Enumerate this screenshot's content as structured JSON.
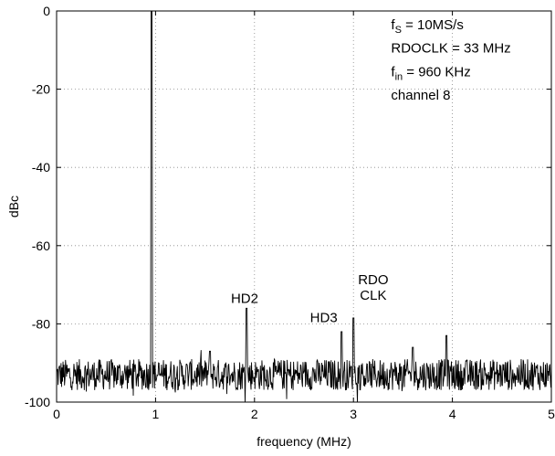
{
  "chart_data": {
    "type": "line",
    "xlabel": "frequency (MHz)",
    "ylabel": "dBc",
    "xlim": [
      0,
      5
    ],
    "ylim": [
      -100,
      0
    ],
    "grid": true,
    "x_ticks": [
      0,
      1,
      2,
      3,
      4,
      5
    ],
    "y_ticks": [
      0,
      -20,
      -40,
      -60,
      -80,
      -100
    ],
    "noise_floor_dBc": -93,
    "spurs": [
      {
        "x": 0.96,
        "y": 0
      },
      {
        "x": 1.92,
        "y": -76
      },
      {
        "x": 2.88,
        "y": -82
      },
      {
        "x": 3.0,
        "y": -78.5
      },
      {
        "x": 3.6,
        "y": -86
      },
      {
        "x": 3.94,
        "y": -83
      },
      {
        "x": 1.55,
        "y": -87
      }
    ],
    "annotations": [
      {
        "id": "hd2",
        "lines": [
          "HD2"
        ],
        "x": 1.9,
        "y": -76
      },
      {
        "id": "hd3",
        "lines": [
          "HD3"
        ],
        "x": 2.7,
        "y": -81
      },
      {
        "id": "rdo",
        "lines": [
          "RDO",
          "CLK"
        ],
        "x": 3.2,
        "y": -75
      }
    ],
    "legend": {
      "fs_main": "f",
      "fs_sub": "S",
      "fs_rest": " = 10MS/s",
      "clk": "RDOCLK = 33 MHz",
      "fin_main": "f",
      "fin_sub": "in",
      "fin_rest": " = 960 KHz",
      "channel": "channel 8"
    }
  }
}
